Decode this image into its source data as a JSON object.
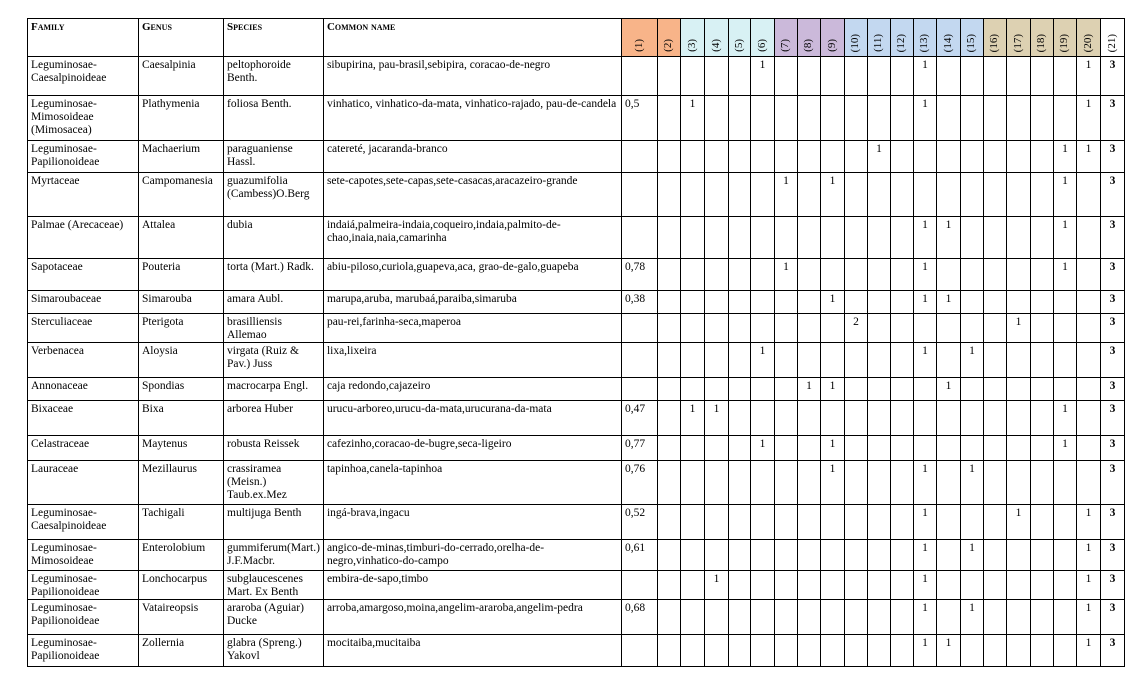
{
  "headers": {
    "family": "Family",
    "genus": "Genus",
    "species": "Species",
    "common_name": "Common name",
    "numbered": [
      "(1)",
      "(2)",
      "(3)",
      "(4)",
      "(5)",
      "(6)",
      "(7)",
      "(8)",
      "(9)",
      "(10)",
      "(11)",
      "(12)",
      "(13)",
      "(14)",
      "(15)",
      "(16)",
      "(17)",
      "(18)",
      "(19)",
      "(20)",
      "(21)"
    ]
  },
  "header_colors": [
    "#f8b489",
    "#f8b489",
    "#d8f1f4",
    "#d8f1f4",
    "#d8f1f4",
    "#d8f1f4",
    "#cbb9da",
    "#cbb9da",
    "#cbb9da",
    "#c3d8f0",
    "#c3d8f0",
    "#c3d8f0",
    "#c3d8f0",
    "#c3d8f0",
    "#c3d8f0",
    "#ddd1b2",
    "#ddd1b2",
    "#ddd1b2",
    "#ddd1b2",
    "#ddd1b2",
    "#ffffff"
  ],
  "rows": [
    {
      "family": "Leguminosae-Caesalpinoideae",
      "genus": "Caesalpinia",
      "species": "peltophoroide Benth.",
      "common": "sibupirina, pau-brasil,sebipira, coracao-de-negro",
      "values": [
        "",
        "",
        "",
        "",
        "",
        "1",
        "",
        "",
        "",
        "",
        "",
        "",
        "1",
        "",
        "",
        "",
        "",
        "",
        "",
        "1",
        "3"
      ]
    },
    {
      "family": "Leguminosae-Mimosoideae (Mimosacea)",
      "genus": "Plathymenia",
      "species": "foliosa Benth.",
      "common": "vinhatico, vinhatico-da-mata, vinhatico-rajado, pau-de-candela",
      "values": [
        "0,5",
        "",
        "1",
        "",
        "",
        "",
        "",
        "",
        "",
        "",
        "",
        "",
        "1",
        "",
        "",
        "",
        "",
        "",
        "",
        "1",
        "3"
      ]
    },
    {
      "family": "Leguminosae-Papilionoideae",
      "genus": "Machaerium",
      "species": "paraguaniense Hassl.",
      "common": "catereté, jacaranda-branco",
      "values": [
        "",
        "",
        "",
        "",
        "",
        "",
        "",
        "",
        "",
        "",
        "1",
        "",
        "",
        "",
        "",
        "",
        "",
        "",
        "1",
        "1",
        "3"
      ]
    },
    {
      "family": "Myrtaceae",
      "genus": "Campomanesia",
      "species": "guazumifolia (Cambess)O.Berg",
      "common": "sete-capotes,sete-capas,sete-casacas,aracazeiro-grande",
      "values": [
        "",
        "",
        "",
        "",
        "",
        "",
        "1",
        "",
        "1",
        "",
        "",
        "",
        "",
        "",
        "",
        "",
        "",
        "",
        "1",
        "",
        "3"
      ]
    },
    {
      "family": "Palmae (Arecaceae)",
      "genus": "Attalea",
      "species": "dubia",
      "common": "indaiá,palmeira-indaia,coqueiro,indaia,palmito-de-chao,inaia,naia,camarinha",
      "values": [
        "",
        "",
        "",
        "",
        "",
        "",
        "",
        "",
        "",
        "",
        "",
        "",
        "1",
        "1",
        "",
        "",
        "",
        "",
        "1",
        "",
        "3"
      ]
    },
    {
      "family": "Sapotaceae",
      "genus": "Pouteria",
      "species": "torta (Mart.) Radk.",
      "common": "abiu-piloso,curiola,guapeva,aca, grao-de-galo,guapeba",
      "values": [
        "0,78",
        "",
        "",
        "",
        "",
        "",
        "1",
        "",
        "",
        "",
        "",
        "",
        "1",
        "",
        "",
        "",
        "",
        "",
        "1",
        "",
        "3"
      ]
    },
    {
      "family": "Simaroubaceae",
      "genus": "Simarouba",
      "species": "amara Aubl.",
      "common": "marupa,aruba, marubaá,paraiba,simaruba",
      "values": [
        "0,38",
        "",
        "",
        "",
        "",
        "",
        "",
        "",
        "1",
        "",
        "",
        "",
        "1",
        "1",
        "",
        "",
        "",
        "",
        "",
        "",
        "3"
      ]
    },
    {
      "family": "Sterculiaceae",
      "genus": "Pterigota",
      "species": "brasilliensis Allemao",
      "common": "pau-rei,farinha-seca,maperoa",
      "values": [
        "",
        "",
        "",
        "",
        "",
        "",
        "",
        "",
        "",
        "2",
        "",
        "",
        "",
        "",
        "",
        "",
        "1",
        "",
        "",
        "",
        "3"
      ]
    },
    {
      "family": "Verbenacea",
      "genus": "Aloysia",
      "species": "virgata (Ruiz & Pav.) Juss",
      "common": "lixa,lixeira",
      "values": [
        "",
        "",
        "",
        "",
        "",
        "1",
        "",
        "",
        "",
        "",
        "",
        "",
        "1",
        "",
        "1",
        "",
        "",
        "",
        "",
        "",
        "3"
      ]
    },
    {
      "family": "Annonaceae",
      "genus": "Spondias",
      "species": "macrocarpa Engl.",
      "common": "caja redondo,cajazeiro",
      "values": [
        "",
        "",
        "",
        "",
        "",
        "",
        "",
        "1",
        "1",
        "",
        "",
        "",
        "",
        "1",
        "",
        "",
        "",
        "",
        "",
        "",
        "3"
      ]
    },
    {
      "family": "Bixaceae",
      "genus": "Bixa",
      "species": "arborea Huber",
      "common": "urucu-arboreo,urucu-da-mata,urucurana-da-mata",
      "values": [
        "0,47",
        "",
        "1",
        "1",
        "",
        "",
        "",
        "",
        "",
        "",
        "",
        "",
        "",
        "",
        "",
        "",
        "",
        "",
        "1",
        "",
        "3"
      ]
    },
    {
      "family": "Celastraceae",
      "genus": "Maytenus",
      "species": "robusta Reissek",
      "common": "cafezinho,coracao-de-bugre,seca-ligeiro",
      "values": [
        "0,77",
        "",
        "",
        "",
        "",
        "1",
        "",
        "",
        "1",
        "",
        "",
        "",
        "",
        "",
        "",
        "",
        "",
        "",
        "1",
        "",
        "3"
      ]
    },
    {
      "family": "Lauraceae",
      "genus": "Mezillaurus",
      "species": "crassiramea (Meisn.) Taub.ex.Mez",
      "common": "tapinhoa,canela-tapinhoa",
      "values": [
        "0,76",
        "",
        "",
        "",
        "",
        "",
        "",
        "",
        "1",
        "",
        "",
        "",
        "1",
        "",
        "1",
        "",
        "",
        "",
        "",
        "",
        "3"
      ]
    },
    {
      "family": "Leguminosae-Caesalpinoideae",
      "genus": "Tachigali",
      "species": "multijuga Benth",
      "common": "ingá-brava,ingacu",
      "values": [
        "0,52",
        "",
        "",
        "",
        "",
        "",
        "",
        "",
        "",
        "",
        "",
        "",
        "1",
        "",
        "",
        "",
        "1",
        "",
        "",
        "1",
        "3"
      ]
    },
    {
      "family": "Leguminosae-Mimosoideae",
      "genus": "Enterolobium",
      "species": "gummiferum(Mart.) J.F.Macbr.",
      "common": "angico-de-minas,timburi-do-cerrado,orelha-de-negro,vinhatico-do-campo",
      "values": [
        "0,61",
        "",
        "",
        "",
        "",
        "",
        "",
        "",
        "",
        "",
        "",
        "",
        "1",
        "",
        "1",
        "",
        "",
        "",
        "",
        "1",
        "3"
      ]
    },
    {
      "family": "Leguminosae-Papilionoideae",
      "genus": "Lonchocarpus",
      "species": "subglaucescenes Mart. Ex Benth",
      "common": "embira-de-sapo,timbo",
      "values": [
        "",
        "",
        "",
        "1",
        "",
        "",
        "",
        "",
        "",
        "",
        "",
        "",
        "1",
        "",
        "",
        "",
        "",
        "",
        "",
        "1",
        "3"
      ]
    },
    {
      "family": "Leguminosae-Papilionoideae",
      "genus": "Vataireopsis",
      "species": "araroba (Aguiar) Ducke",
      "common": "arroba,amargoso,moina,angelim-araroba,angelim-pedra",
      "values": [
        "0,68",
        "",
        "",
        "",
        "",
        "",
        "",
        "",
        "",
        "",
        "",
        "",
        "1",
        "",
        "1",
        "",
        "",
        "",
        "",
        "1",
        "3"
      ]
    },
    {
      "family": "Leguminosae-Papilionoideae",
      "genus": "Zollernia",
      "species": "glabra (Spreng.) Yakovl",
      "common": "mocitaiba,mucitaiba",
      "values": [
        "",
        "",
        "",
        "",
        "",
        "",
        "",
        "",
        "",
        "",
        "",
        "",
        "1",
        "1",
        "",
        "",
        "",
        "",
        "",
        "1",
        "3"
      ]
    }
  ]
}
